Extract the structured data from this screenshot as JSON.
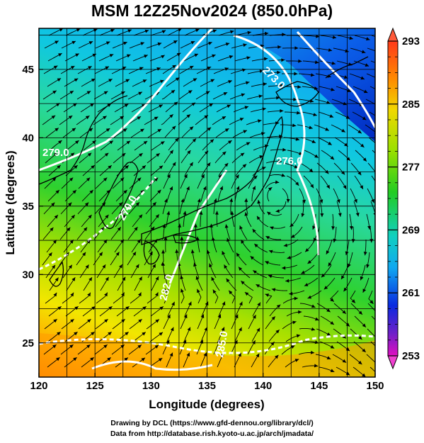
{
  "title": "MSM 12Z25Nov2024 (850.0hPa)",
  "credits": {
    "line1": "Drawing by DCL (https://www.gfd-dennou.org/library/dcl/)",
    "line2": "Data from http://database.rish.kyoto-u.ac.jp/arch/jmadata/"
  },
  "map": {
    "xlabel": "Longitude (degrees)",
    "ylabel": "Latitude  (degrees)",
    "lon_range": [
      120,
      150
    ],
    "lat_range": [
      22.5,
      48
    ],
    "lon_ticks": [
      "120",
      "125",
      "130",
      "135",
      "140",
      "145",
      "150"
    ],
    "lat_ticks": [
      "25",
      "30",
      "35",
      "40",
      "45"
    ],
    "contour_labels": [
      "270.0",
      "273.0",
      "276.0",
      "279.0",
      "282.0",
      "285.0"
    ],
    "colors": {
      "warm": "#ff8c00",
      "yellow": "#e8e800",
      "green": "#22cc22",
      "cyan": "#00d8d8",
      "blue": "#0a3cd8",
      "contour": "#ffffff",
      "streamline": "#000000"
    }
  },
  "colorbar": {
    "ticks": [
      "293",
      "285",
      "277",
      "269",
      "261",
      "253"
    ],
    "range": [
      253,
      293
    ]
  }
}
